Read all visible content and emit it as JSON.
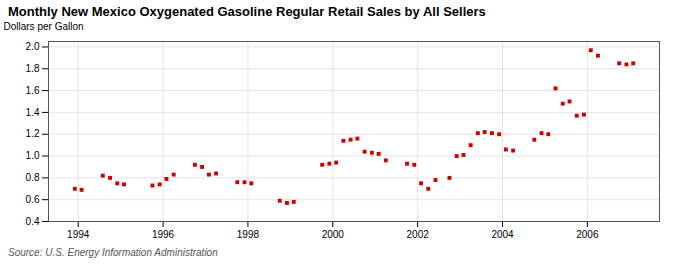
{
  "chart_data": {
    "type": "scatter",
    "title": "Monthly New Mexico Oxygenated Gasoline Regular Retail Sales by All Sellers",
    "ylabel": "Dollars per Gallon",
    "source": "Source: U.S. Energy Information Administration",
    "x": [
      1993.92,
      1994.08,
      1994.58,
      1994.75,
      1994.92,
      1995.08,
      1995.75,
      1995.92,
      1996.08,
      1996.25,
      1996.75,
      1996.92,
      1997.08,
      1997.25,
      1997.75,
      1997.92,
      1998.08,
      1998.75,
      1998.92,
      1999.08,
      1999.75,
      1999.92,
      2000.08,
      2000.25,
      2000.42,
      2000.58,
      2000.75,
      2000.92,
      2001.08,
      2001.25,
      2001.75,
      2001.92,
      2002.08,
      2002.25,
      2002.42,
      2002.75,
      2002.92,
      2003.08,
      2003.25,
      2003.42,
      2003.58,
      2003.75,
      2003.92,
      2004.08,
      2004.25,
      2004.75,
      2004.92,
      2005.08,
      2005.25,
      2005.42,
      2005.58,
      2005.75,
      2005.92,
      2006.08,
      2006.25,
      2006.75,
      2006.92,
      2007.08
    ],
    "values": [
      0.7,
      0.69,
      0.82,
      0.8,
      0.75,
      0.74,
      0.73,
      0.74,
      0.79,
      0.83,
      0.92,
      0.9,
      0.83,
      0.84,
      0.76,
      0.76,
      0.75,
      0.59,
      0.57,
      0.58,
      0.92,
      0.93,
      0.94,
      1.14,
      1.15,
      1.16,
      1.04,
      1.03,
      1.02,
      0.96,
      0.93,
      0.92,
      0.75,
      0.7,
      0.78,
      0.8,
      1.0,
      1.01,
      1.1,
      1.21,
      1.22,
      1.21,
      1.2,
      1.06,
      1.05,
      1.15,
      1.21,
      1.2,
      1.62,
      1.48,
      1.5,
      1.37,
      1.38,
      1.97,
      1.92,
      1.85,
      1.84,
      1.85
    ],
    "color": "#CC0000",
    "marker": "square",
    "xlim": [
      1993.3,
      2007.7
    ],
    "ylim": [
      0.4,
      2.05
    ],
    "xticks": [
      1994,
      1996,
      1998,
      2000,
      2002,
      2004,
      2006
    ],
    "yticks": [
      0.4,
      0.6,
      0.8,
      {
        "value": 1.0,
        "label": "1.0"
      },
      1.2,
      1.4,
      1.6,
      1.8,
      {
        "value": 2.0,
        "label": "2.0"
      }
    ],
    "grid": true
  }
}
